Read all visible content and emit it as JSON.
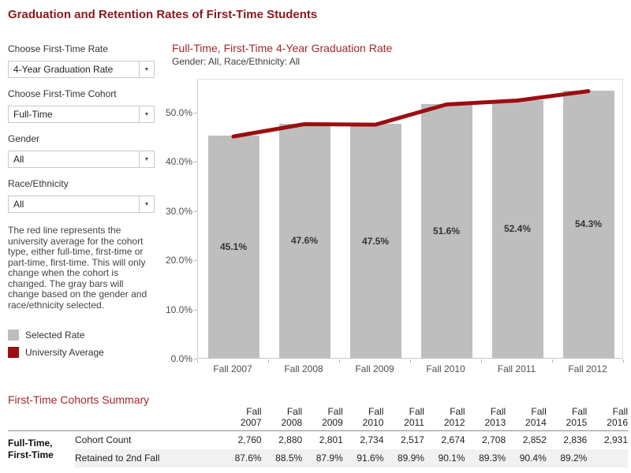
{
  "page": {
    "title": "Graduation and Retention Rates of First-Time Students"
  },
  "sidebar": {
    "filters": [
      {
        "label": "Choose First-Time Rate",
        "value": "4-Year Graduation Rate"
      },
      {
        "label": "Choose First-Time Cohort",
        "value": "Full-Time"
      },
      {
        "label": "Gender",
        "value": "All"
      },
      {
        "label": "Race/Ethnicity",
        "value": "All"
      }
    ],
    "description": "The red line represents the university average for the cohort type, either full-time, first-time or part-time, first-time. This will only change when the cohort is changed. The gray bars will change based on the gender and race/ethnicity selected.",
    "legend": [
      {
        "label": "Selected Rate",
        "color": "#bebebe"
      },
      {
        "label": "University Average",
        "color": "#9b0e11"
      }
    ]
  },
  "chart": {
    "title": "Full-Time, First-Time 4-Year Graduation Rate",
    "subtitle": "Gender: All, Race/Ethnicity: All"
  },
  "chart_data": {
    "type": "bar",
    "title": "Full-Time, First-Time 4-Year Graduation Rate",
    "subtitle": "Gender: All, Race/Ethnicity: All",
    "categories": [
      "Fall 2007",
      "Fall 2008",
      "Fall 2009",
      "Fall 2010",
      "Fall 2011",
      "Fall 2012"
    ],
    "series": [
      {
        "name": "Selected Rate",
        "type": "bar",
        "color": "#bebebe",
        "values": [
          45.1,
          47.6,
          47.5,
          51.6,
          52.4,
          54.3
        ],
        "labels": [
          "45.1%",
          "47.6%",
          "47.5%",
          "51.6%",
          "52.4%",
          "54.3%"
        ]
      },
      {
        "name": "University Average",
        "type": "line",
        "color": "#9b0e11",
        "values": [
          45.1,
          47.6,
          47.5,
          51.6,
          52.4,
          54.3
        ]
      }
    ],
    "ylabel": "",
    "xlabel": "",
    "ylim": [
      0,
      56.8
    ],
    "yticks": [
      {
        "value": 0,
        "label": "0.0%"
      },
      {
        "value": 10,
        "label": "10.0%"
      },
      {
        "value": 20,
        "label": "20.0%"
      },
      {
        "value": 30,
        "label": "30.0%"
      },
      {
        "value": 40,
        "label": "40.0%"
      },
      {
        "value": 50,
        "label": "50.0%"
      }
    ],
    "grid": false,
    "legend_position": "left-sidebar"
  },
  "summary": {
    "title": "First-Time Cohorts Summary",
    "group_label_line1": "Full-Time,",
    "group_label_line2": "First-Time",
    "columns": [
      "Fall 2007",
      "Fall 2008",
      "Fall 2009",
      "Fall 2010",
      "Fall 2011",
      "Fall 2012",
      "Fall 2013",
      "Fall 2014",
      "Fall 2015",
      "Fall 2016"
    ],
    "rows": [
      {
        "label": "Cohort Count",
        "values": [
          "2,760",
          "2,880",
          "2,801",
          "2,734",
          "2,517",
          "2,674",
          "2,708",
          "2,852",
          "2,836",
          "2,931"
        ]
      },
      {
        "label": "Retained to 2nd Fall",
        "values": [
          "87.6%",
          "88.5%",
          "87.9%",
          "91.6%",
          "89.9%",
          "90.1%",
          "89.3%",
          "90.4%",
          "89.2%",
          ""
        ]
      }
    ]
  }
}
